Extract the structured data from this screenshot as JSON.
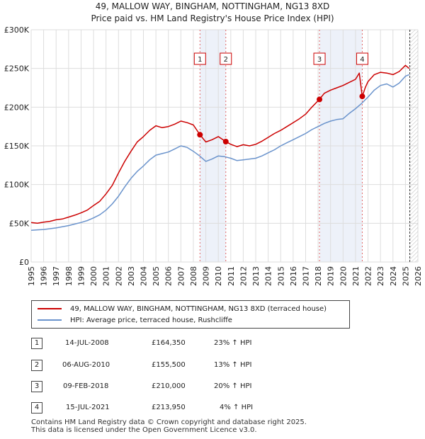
{
  "title_line1": "49, MALLOW WAY, BINGHAM, NOTTINGHAM, NG13 8XD",
  "title_line2": "Price paid vs. HM Land Registry's House Price Index (HPI)",
  "chart_data": {
    "type": "line",
    "title": "Price paid vs. HM Land Registry's House Price Index (HPI)",
    "xlabel": "",
    "ylabel": "",
    "xlim": [
      1995,
      2026
    ],
    "ylim": [
      0,
      300000
    ],
    "grid": true,
    "x_ticks": [
      1995,
      1996,
      1997,
      1998,
      1999,
      2000,
      2001,
      2002,
      2003,
      2004,
      2005,
      2006,
      2007,
      2008,
      2009,
      2010,
      2011,
      2012,
      2013,
      2014,
      2015,
      2016,
      2017,
      2018,
      2019,
      2020,
      2021,
      2022,
      2023,
      2024,
      2025,
      2026
    ],
    "y_ticks": [
      0,
      50000,
      100000,
      150000,
      200000,
      250000,
      300000
    ],
    "y_tick_labels": [
      "£0",
      "£50K",
      "£100K",
      "£150K",
      "£200K",
      "£250K",
      "£300K"
    ],
    "series": [
      {
        "name": "49, MALLOW WAY, BINGHAM, NOTTINGHAM, NG13 8XD (terraced house)",
        "color": "#cc0000",
        "x": [
          1995.0,
          1995.5,
          1996.0,
          1996.5,
          1997.0,
          1997.5,
          1998.0,
          1998.5,
          1999.0,
          1999.5,
          2000.0,
          2000.5,
          2001.0,
          2001.5,
          2002.0,
          2002.5,
          2003.0,
          2003.5,
          2004.0,
          2004.5,
          2005.0,
          2005.5,
          2006.0,
          2006.5,
          2007.0,
          2007.5,
          2008.0,
          2008.53,
          2009.0,
          2009.5,
          2010.0,
          2010.6,
          2011.0,
          2011.5,
          2012.0,
          2012.5,
          2013.0,
          2013.5,
          2014.0,
          2014.5,
          2015.0,
          2015.5,
          2016.0,
          2016.5,
          2017.0,
          2017.5,
          2018.1,
          2018.5,
          2019.0,
          2019.5,
          2020.0,
          2020.5,
          2021.0,
          2021.3,
          2021.54,
          2021.8,
          2022.0,
          2022.5,
          2023.0,
          2023.5,
          2024.0,
          2024.5,
          2025.0,
          2025.3
        ],
        "values": [
          51000,
          50000,
          51500,
          52500,
          54500,
          55500,
          58000,
          60500,
          63500,
          67000,
          73000,
          78500,
          88000,
          99000,
          115000,
          130000,
          143000,
          155000,
          162000,
          170000,
          176000,
          173500,
          175000,
          178000,
          182000,
          180000,
          177000,
          164350,
          155000,
          158000,
          162000,
          155500,
          152000,
          149000,
          151500,
          150000,
          152000,
          156000,
          161000,
          166000,
          170000,
          175000,
          180000,
          185000,
          191000,
          200000,
          210000,
          218000,
          222000,
          225000,
          228000,
          232000,
          236000,
          244000,
          213950,
          226000,
          233000,
          242000,
          245000,
          244000,
          242000,
          246000,
          254000,
          250000
        ]
      },
      {
        "name": "HPI: Average price, terraced house, Rushcliffe",
        "color": "#6a93cc",
        "x": [
          1995.0,
          1995.5,
          1996.0,
          1996.5,
          1997.0,
          1997.5,
          1998.0,
          1998.5,
          1999.0,
          1999.5,
          2000.0,
          2000.5,
          2001.0,
          2001.5,
          2002.0,
          2002.5,
          2003.0,
          2003.5,
          2004.0,
          2004.5,
          2005.0,
          2005.5,
          2006.0,
          2006.5,
          2007.0,
          2007.5,
          2008.0,
          2008.5,
          2009.0,
          2009.5,
          2010.0,
          2010.5,
          2011.0,
          2011.5,
          2012.0,
          2012.5,
          2013.0,
          2013.5,
          2014.0,
          2014.5,
          2015.0,
          2015.5,
          2016.0,
          2016.5,
          2017.0,
          2017.5,
          2018.0,
          2018.5,
          2019.0,
          2019.5,
          2020.0,
          2020.5,
          2021.0,
          2021.5,
          2022.0,
          2022.5,
          2023.0,
          2023.5,
          2024.0,
          2024.5,
          2025.0,
          2025.3
        ],
        "values": [
          41000,
          41500,
          42000,
          43000,
          44000,
          45500,
          47000,
          49000,
          51000,
          53500,
          57000,
          61000,
          67000,
          75000,
          85000,
          97000,
          108000,
          117000,
          124000,
          132000,
          138000,
          140000,
          142000,
          146000,
          150000,
          148000,
          143000,
          137000,
          130000,
          133000,
          137000,
          136000,
          134000,
          131000,
          132000,
          133000,
          134000,
          137000,
          141000,
          145000,
          150000,
          154000,
          158000,
          162000,
          166000,
          171000,
          175000,
          179000,
          182000,
          184000,
          185000,
          192000,
          198000,
          205000,
          213000,
          222000,
          228000,
          230000,
          226000,
          231000,
          240000,
          242000
        ]
      }
    ],
    "markers": [
      {
        "label": "1",
        "x": 2008.53,
        "value": 164350
      },
      {
        "label": "2",
        "x": 2010.6,
        "value": 155500
      },
      {
        "label": "3",
        "x": 2018.11,
        "value": 210000
      },
      {
        "label": "4",
        "x": 2021.54,
        "value": 213950
      }
    ]
  },
  "legend": {
    "items": [
      {
        "label": "49, MALLOW WAY, BINGHAM, NOTTINGHAM, NG13 8XD (terraced house)",
        "color": "#cc0000"
      },
      {
        "label": "HPI: Average price, terraced house, Rushcliffe",
        "color": "#6a93cc"
      }
    ]
  },
  "transactions": [
    {
      "num": "1",
      "date": "14-JUL-2008",
      "price": "£164,350",
      "hpi": "23% ↑ HPI"
    },
    {
      "num": "2",
      "date": "06-AUG-2010",
      "price": "£155,500",
      "hpi": "13% ↑ HPI"
    },
    {
      "num": "3",
      "date": "09-FEB-2018",
      "price": "£210,000",
      "hpi": "20% ↑ HPI"
    },
    {
      "num": "4",
      "date": "15-JUL-2021",
      "price": "£213,950",
      "hpi": "4% ↑ HPI"
    }
  ],
  "footer": {
    "line1": "Contains HM Land Registry data © Crown copyright and database right 2025.",
    "line2": "This data is licensed under the Open Government Licence v3.0."
  }
}
